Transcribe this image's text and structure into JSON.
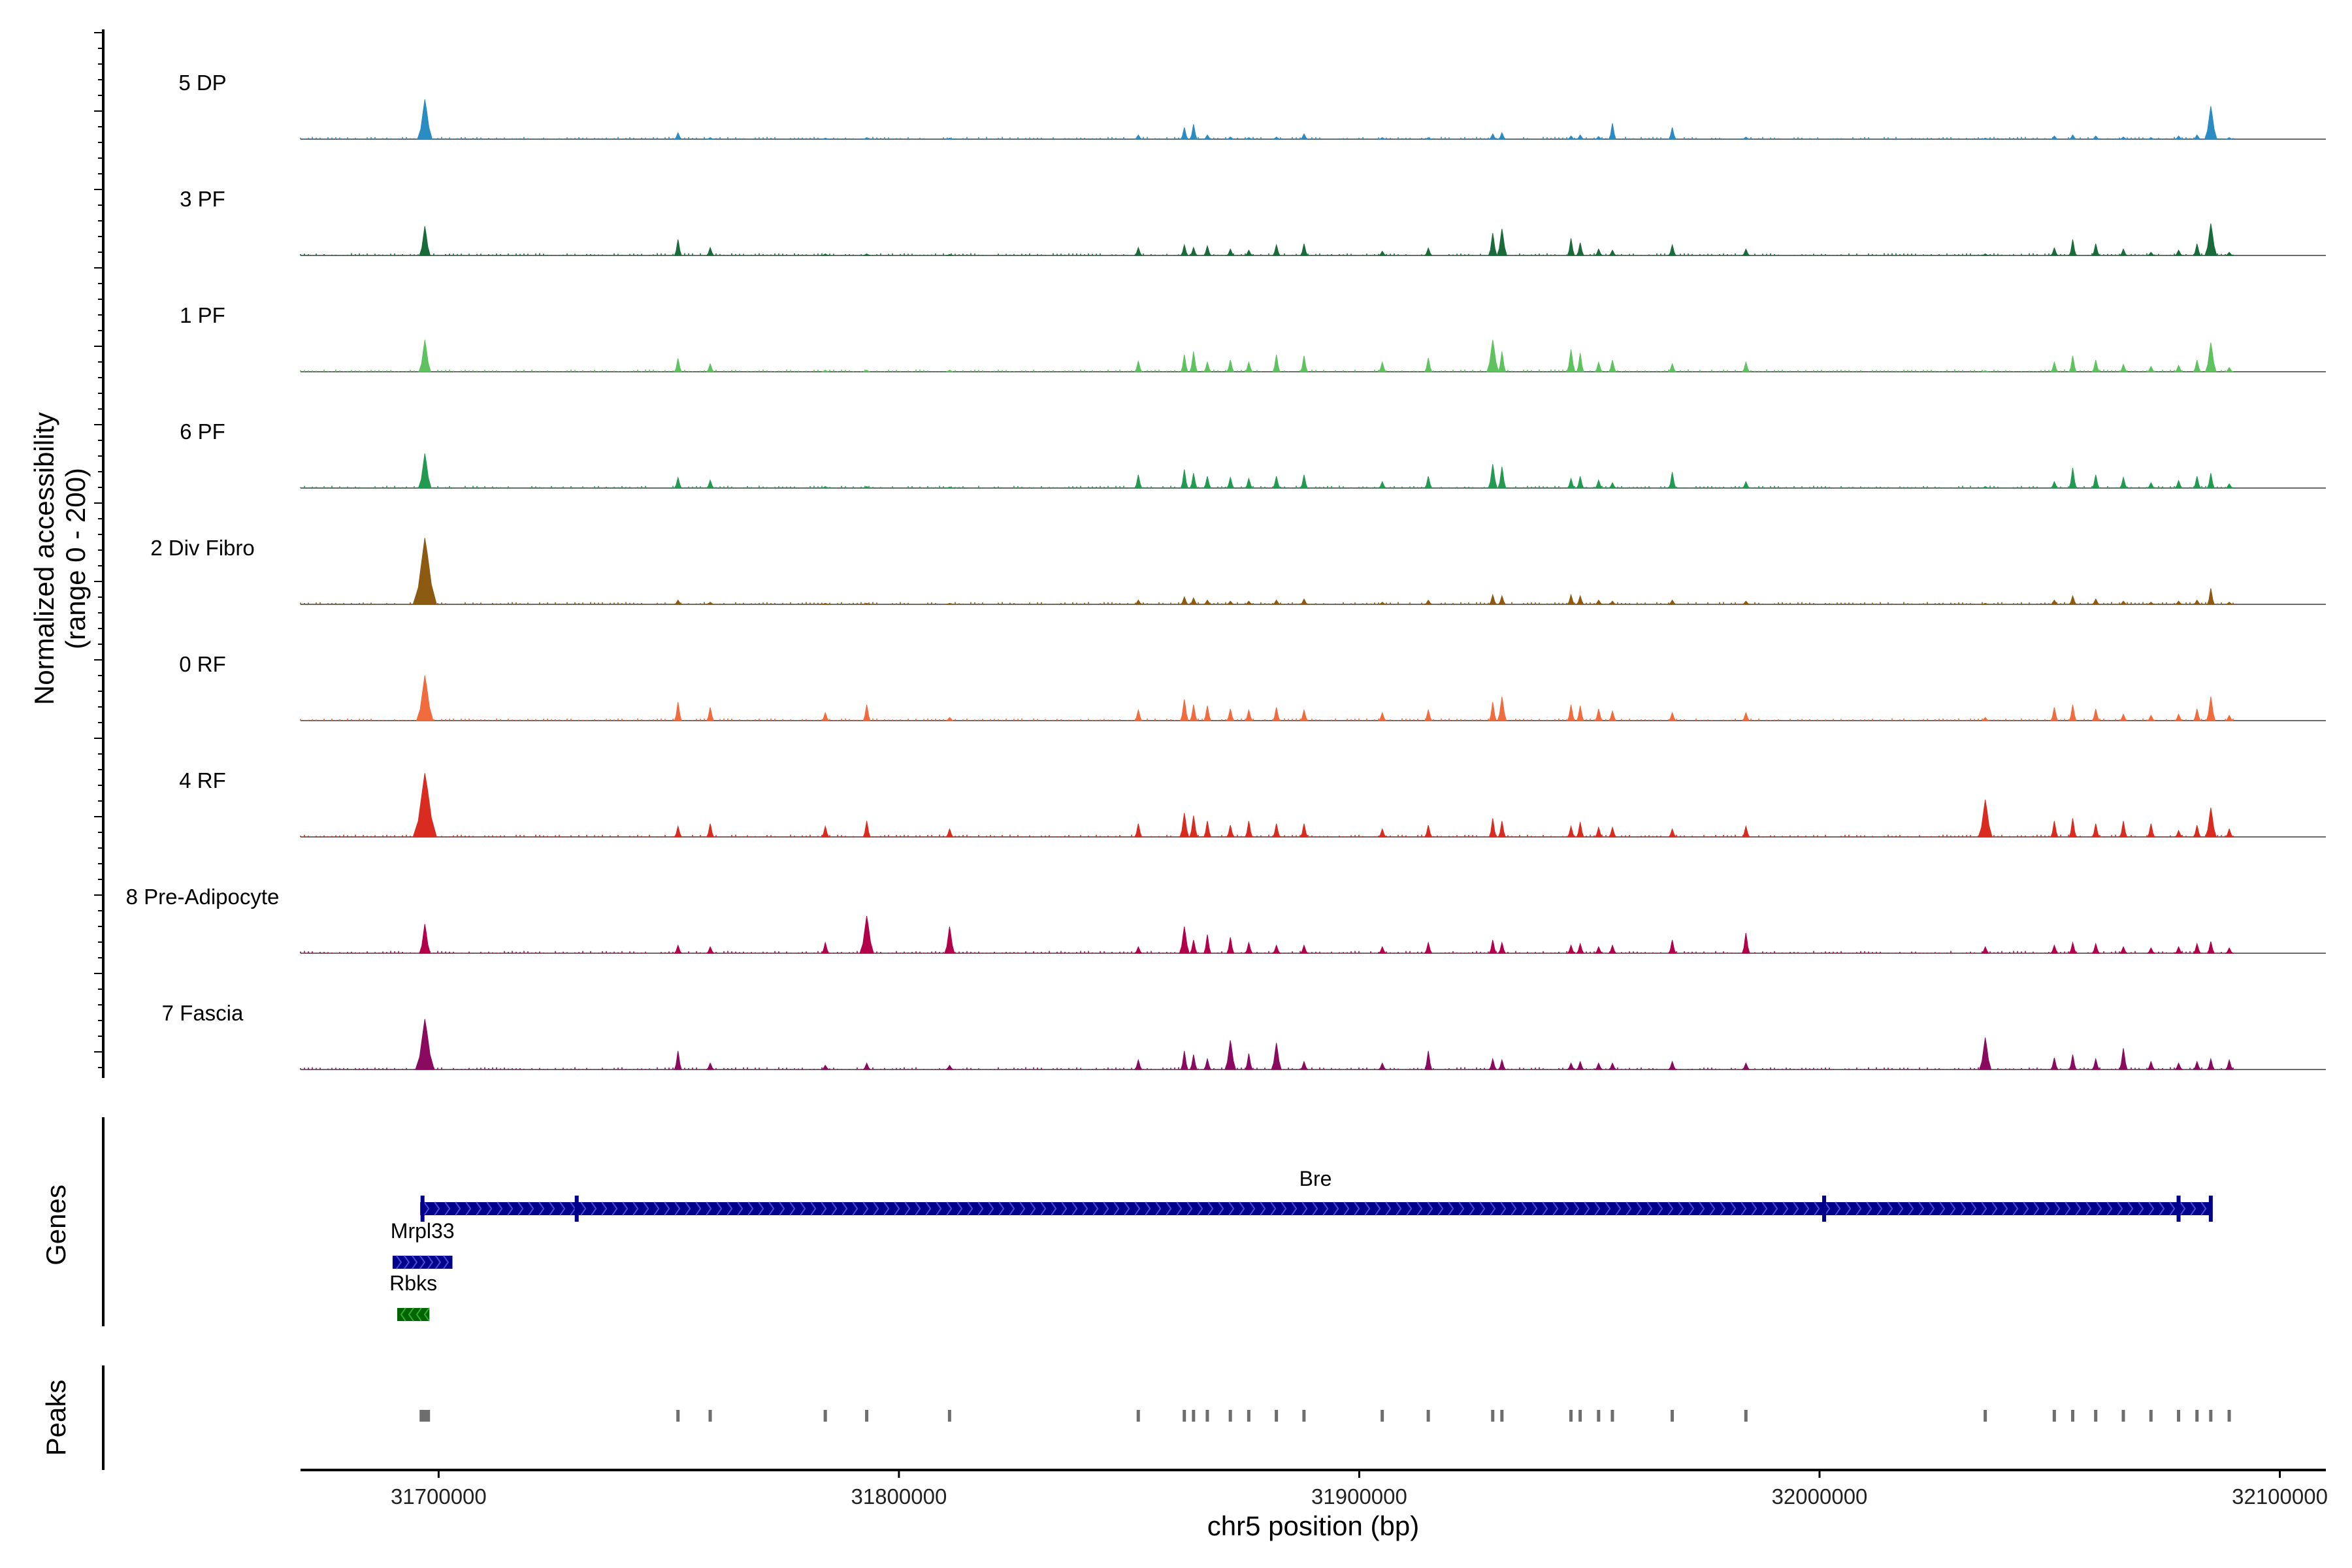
{
  "chart_data": {
    "type": "area",
    "title": "",
    "region": "chr5",
    "xlabel": "chr5 position (bp)",
    "ylabel_line1": "Normalized accessibility",
    "ylabel_line2": "(range 0 - 200)",
    "xlim": [
      31670000,
      32110000
    ],
    "x_ticks": [
      31700000,
      31800000,
      31900000,
      32000000,
      32100000
    ],
    "x_tick_labels": [
      "31700000",
      "31800000",
      "31900000",
      "32000000",
      "32100000"
    ],
    "ylim": [
      0,
      200
    ],
    "grid": false,
    "peak_positions": [
      31697000,
      31752000,
      31759000,
      31784000,
      31793000,
      31811000,
      31852000,
      31862000,
      31864000,
      31867000,
      31872000,
      31876000,
      31882000,
      31888000,
      31905000,
      31915000,
      31929000,
      31931000,
      31946000,
      31948000,
      31952000,
      31955000,
      31968000,
      31984000,
      32036000,
      32051000,
      32055000,
      32060000,
      32066000,
      32072000,
      32078000,
      32082000,
      32085000,
      32089000
    ],
    "series": [
      {
        "name": "5 DP",
        "color": "#2b8cc4",
        "values": [
          75,
          12,
          3,
          2,
          3,
          2,
          8,
          22,
          28,
          8,
          4,
          3,
          4,
          10,
          3,
          3,
          10,
          12,
          6,
          8,
          5,
          30,
          22,
          4,
          2,
          6,
          8,
          6,
          4,
          3,
          6,
          8,
          62,
          3
        ]
      },
      {
        "name": "3 PF",
        "color": "#1a6b3a",
        "values": [
          55,
          30,
          15,
          3,
          3,
          2,
          15,
          20,
          15,
          18,
          12,
          10,
          20,
          22,
          8,
          14,
          42,
          50,
          32,
          24,
          12,
          10,
          20,
          12,
          3,
          14,
          30,
          22,
          12,
          6,
          10,
          22,
          60,
          6
        ]
      },
      {
        "name": "1 PF",
        "color": "#5ec25e",
        "values": [
          60,
          25,
          15,
          3,
          3,
          3,
          20,
          32,
          38,
          18,
          22,
          18,
          32,
          30,
          18,
          26,
          60,
          38,
          42,
          35,
          18,
          22,
          15,
          18,
          2,
          18,
          30,
          22,
          14,
          10,
          12,
          22,
          55,
          8
        ]
      },
      {
        "name": "6 PF",
        "color": "#239a52",
        "values": [
          65,
          20,
          15,
          3,
          3,
          2,
          25,
          35,
          28,
          22,
          20,
          18,
          22,
          25,
          12,
          22,
          45,
          40,
          18,
          22,
          15,
          10,
          30,
          12,
          3,
          12,
          38,
          25,
          20,
          10,
          14,
          22,
          28,
          8
        ]
      },
      {
        "name": "2 Div Fibro",
        "color": "#8c5a10",
        "values": [
          125,
          8,
          4,
          2,
          2,
          2,
          8,
          14,
          12,
          8,
          6,
          6,
          8,
          10,
          4,
          8,
          18,
          16,
          18,
          16,
          8,
          6,
          8,
          6,
          2,
          8,
          16,
          10,
          6,
          4,
          6,
          8,
          30,
          4
        ]
      },
      {
        "name": "0 RF",
        "color": "#f06c3e",
        "values": [
          85,
          35,
          25,
          15,
          30,
          6,
          20,
          40,
          30,
          28,
          22,
          20,
          25,
          20,
          15,
          20,
          35,
          45,
          30,
          28,
          22,
          18,
          15,
          15,
          6,
          25,
          30,
          22,
          12,
          10,
          12,
          22,
          45,
          10
        ]
      },
      {
        "name": "4 RF",
        "color": "#d92b20",
        "values": [
          120,
          20,
          25,
          20,
          30,
          15,
          25,
          45,
          40,
          30,
          22,
          30,
          25,
          25,
          15,
          22,
          35,
          30,
          20,
          28,
          18,
          18,
          15,
          20,
          70,
          30,
          35,
          25,
          30,
          25,
          12,
          22,
          55,
          15
        ]
      },
      {
        "name": "8 Pre-Adipocyte",
        "color": "#b3004b",
        "values": [
          55,
          15,
          12,
          20,
          70,
          50,
          12,
          50,
          25,
          35,
          30,
          20,
          15,
          15,
          12,
          20,
          25,
          20,
          15,
          18,
          12,
          15,
          25,
          38,
          12,
          15,
          20,
          18,
          12,
          10,
          12,
          18,
          22,
          10
        ]
      },
      {
        "name": "7 Fascia",
        "color": "#8a0a5f",
        "values": [
          95,
          35,
          12,
          8,
          12,
          8,
          18,
          35,
          28,
          20,
          55,
          30,
          50,
          15,
          12,
          35,
          20,
          18,
          12,
          15,
          12,
          12,
          15,
          12,
          60,
          22,
          28,
          20,
          40,
          15,
          12,
          15,
          20,
          18
        ]
      }
    ],
    "genes": [
      {
        "name": "Bre",
        "start": 31696000,
        "end": 32085000,
        "strand": "+",
        "color": "#00008b"
      },
      {
        "name": "Mrpl33",
        "start": 31690000,
        "end": 31703000,
        "strand": "+",
        "color": "#00008b"
      },
      {
        "name": "Rbks",
        "start": 31691000,
        "end": 31698000,
        "strand": "-",
        "color": "#006400"
      }
    ],
    "gene_track_label": "Genes",
    "peak_track_label": "Peaks"
  }
}
